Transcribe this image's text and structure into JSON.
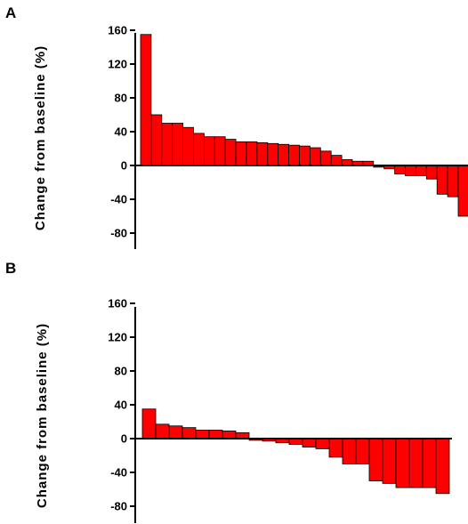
{
  "chart_data": [
    {
      "type": "bar",
      "panel": "A",
      "ylabel": "Change from baseline (%)",
      "ylim": [
        -100,
        160
      ],
      "yticks": [
        160,
        120,
        80,
        40,
        0,
        -40,
        -80
      ],
      "values": [
        155,
        60,
        50,
        50,
        45,
        38,
        34,
        34,
        31,
        28,
        28,
        27,
        26,
        25,
        24,
        23,
        21,
        17,
        12,
        7,
        5,
        5,
        -2,
        -4,
        -10,
        -12,
        -12,
        -16,
        -34,
        -37,
        -60
      ],
      "grid": false,
      "legend": "none"
    },
    {
      "type": "bar",
      "panel": "B",
      "ylabel": "Change from baseline (%)",
      "ylim": [
        -100,
        160
      ],
      "yticks": [
        160,
        120,
        80,
        40,
        0,
        -40,
        -80
      ],
      "values": [
        35,
        17,
        15,
        13,
        10,
        10,
        9,
        7,
        -2,
        -3,
        -5,
        -7,
        -10,
        -12,
        -22,
        -30,
        -30,
        -50,
        -53,
        -58,
        -58,
        -58,
        -65
      ],
      "grid": false,
      "legend": "none"
    }
  ],
  "colors": {
    "bar_fill": "#ff0000",
    "bar_stroke": "#000000",
    "axis": "#000000"
  }
}
